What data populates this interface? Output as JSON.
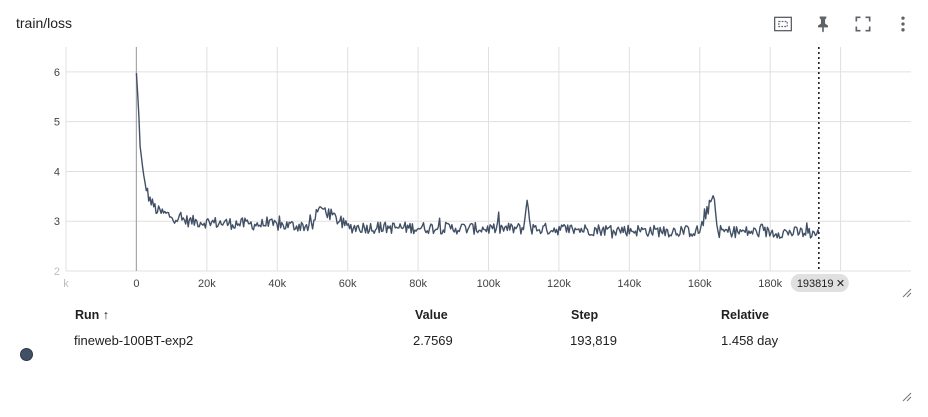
{
  "card": {
    "title": "train/loss",
    "toolbar": [
      {
        "name": "fit-domain-button",
        "icon": "fit-to-data-icon"
      },
      {
        "name": "pin-button",
        "icon": "pin-icon"
      },
      {
        "name": "fullscreen-button",
        "icon": "fullscreen-icon"
      },
      {
        "name": "more-options-button",
        "icon": "more-vert-icon"
      }
    ]
  },
  "chart_data": {
    "type": "line",
    "title": "",
    "xlabel": "",
    "ylabel": "",
    "xlim": [
      -20000,
      220000
    ],
    "ylim": [
      2,
      6.5
    ],
    "x_ticks": [
      "k",
      "0",
      "20k",
      "40k",
      "60k",
      "80k",
      "100k",
      "120k",
      "140k",
      "160k",
      "180k",
      "k"
    ],
    "y_ticks": [
      "6",
      "5",
      "4",
      "3",
      "2"
    ],
    "grid": true,
    "series_color": "#425066",
    "series": [
      {
        "name": "fineweb-100BT-exp2",
        "x": [
          0,
          500,
          1000,
          1500,
          2000,
          3000,
          4000,
          5000,
          6000,
          8000,
          10000,
          12000,
          15000,
          20000,
          25000,
          30000,
          40000,
          50000,
          52000,
          60000,
          70000,
          80000,
          90000,
          100000,
          110000,
          111000,
          112000,
          120000,
          130000,
          140000,
          150000,
          160000,
          164000,
          165000,
          170000,
          180000,
          190000,
          193819
        ],
        "y": [
          5.95,
          5.4,
          4.6,
          4.2,
          3.9,
          3.6,
          3.4,
          3.3,
          3.2,
          3.15,
          3.1,
          3.05,
          3.0,
          2.98,
          2.96,
          2.95,
          2.92,
          2.9,
          3.3,
          2.88,
          2.87,
          2.87,
          2.86,
          2.85,
          2.85,
          3.45,
          2.85,
          2.84,
          2.83,
          2.82,
          2.8,
          2.8,
          3.55,
          2.8,
          2.79,
          2.78,
          2.77,
          2.7569
        ]
      }
    ],
    "hover_step": "193819",
    "hover_close_icon": "close-icon"
  },
  "table": {
    "headers": {
      "run": "Run ↑",
      "value": "Value",
      "step": "Step",
      "relative": "Relative"
    },
    "rows": [
      {
        "run": "fineweb-100BT-exp2",
        "value": "2.7569",
        "step": "193,819",
        "relative": "1.458 day",
        "color": "#425066"
      }
    ]
  }
}
